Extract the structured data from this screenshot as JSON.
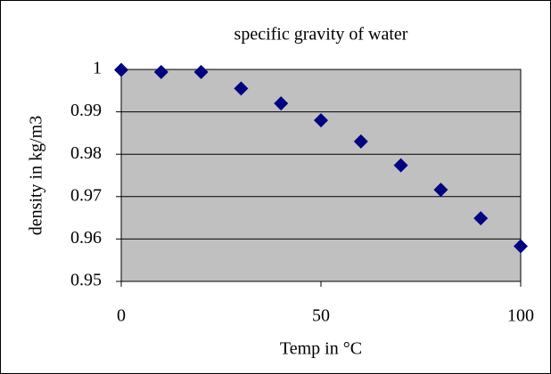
{
  "chart_data": {
    "type": "scatter",
    "title": "specific gravity of water",
    "x_label": "Temp in °C",
    "y_label": "density in kg/m3",
    "series": [
      {
        "name": "density",
        "color": "#000080",
        "x": [
          0,
          10,
          20,
          30,
          40,
          50,
          60,
          70,
          80,
          90,
          100
        ],
        "values": [
          0.9999,
          0.9994,
          0.9994,
          0.9955,
          0.992,
          0.988,
          0.983,
          0.9774,
          0.9716,
          0.9649,
          0.9583
        ]
      }
    ],
    "xlim": [
      0,
      100
    ],
    "xticks": [
      0,
      50,
      100
    ],
    "ylim": [
      0.95,
      1
    ],
    "yticks": [
      0.95,
      0.96,
      0.97,
      0.98,
      0.99,
      1
    ],
    "grid": true,
    "plot_background": "#c0c0c0"
  }
}
